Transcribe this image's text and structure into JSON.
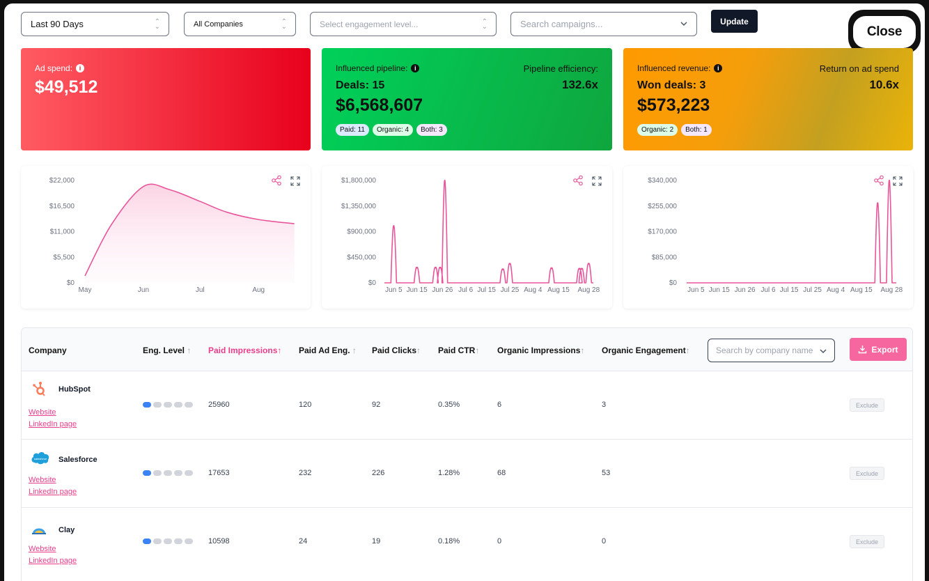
{
  "filters": {
    "date_range": "Last 90 Days",
    "companies": "All Companies",
    "engagement_placeholder": "Select engagement level...",
    "campaign_placeholder": "Search campaigns...",
    "update_label": "Update",
    "close_label": "Close"
  },
  "kpis": {
    "ad_spend": {
      "label": "Ad spend:",
      "value": "$49,512"
    },
    "pipeline": {
      "label": "Influenced pipeline:",
      "deals": "Deals: 15",
      "value": "$6,568,607",
      "right_label": "Pipeline efficiency:",
      "right_value": "132.6x",
      "pills": [
        "Paid: 11",
        "Organic: 4",
        "Both: 3"
      ]
    },
    "revenue": {
      "label": "Influenced revenue:",
      "deals": "Won deals: 3",
      "value": "$573,223",
      "right_label": "Return on ad spend",
      "right_value": "10.6x",
      "pills": [
        "Organic: 2",
        "Both: 1"
      ]
    }
  },
  "colors": {
    "accent": "#e83e8c",
    "line": "#e8559a",
    "ad_spend_card": "#ff3b3b",
    "pipeline_card": "#00c853",
    "revenue_card": "#ff9a00",
    "eng_on": "#3b82f6"
  },
  "icons": {
    "share": "share-icon",
    "expand": "expand-icon",
    "info": "info-icon",
    "download": "download-icon",
    "chevron": "chevron-down-icon"
  },
  "chart_data": [
    {
      "type": "area",
      "x": [
        "May",
        "May 15",
        "Jun",
        "Jun 15",
        "Jul",
        "Jul 15",
        "Aug",
        "Aug 20"
      ],
      "values": [
        1500,
        12500,
        20700,
        20000,
        17500,
        15200,
        13600,
        12700
      ],
      "xticks": [
        "May",
        "Jun",
        "Jul",
        "Aug"
      ],
      "yticks": [
        "$0",
        "$5,500",
        "$11,000",
        "$16,500",
        "$22,000"
      ],
      "ylim": [
        0,
        22000
      ],
      "grid": false
    },
    {
      "type": "line",
      "x": [
        "Jun 5",
        "Jun 15",
        "Jun 26",
        "Jul 6",
        "Jul 15",
        "Jul 25",
        "Aug 4",
        "Aug 15",
        "Aug 28"
      ],
      "peaks": [
        {
          "x": "Jun 5",
          "value": 1000000
        },
        {
          "x": "Jun 15",
          "value": 260000
        },
        {
          "x": "Jun 23",
          "value": 260000
        },
        {
          "x": "Jun 25",
          "value": 260000
        },
        {
          "x": "Jun 27",
          "value": 1800000
        },
        {
          "x": "Jul 22",
          "value": 230000
        },
        {
          "x": "Jul 25",
          "value": 330000
        },
        {
          "x": "Aug 12",
          "value": 250000
        },
        {
          "x": "Aug 24",
          "value": 240000
        },
        {
          "x": "Aug 25",
          "value": 240000
        },
        {
          "x": "Aug 28",
          "value": 330000
        }
      ],
      "xticks": [
        "Jun 5",
        "Jun 15",
        "Jun 26",
        "Jul 6",
        "Jul 15",
        "Jul 25",
        "Aug 4",
        "Aug 15",
        "Aug 28"
      ],
      "yticks": [
        "$0",
        "$450,000",
        "$900,000",
        "$1,350,000",
        "$1,800,000"
      ],
      "ylim": [
        0,
        1800000
      ],
      "grid": false
    },
    {
      "type": "line",
      "x": [
        "Jun 5",
        "Jun 15",
        "Jun 26",
        "Jul 6",
        "Jul 15",
        "Jul 25",
        "Aug 4",
        "Aug 15",
        "Aug 28"
      ],
      "peaks": [
        {
          "x": "Aug 22",
          "value": 265000
        },
        {
          "x": "Aug 27",
          "value": 340000
        }
      ],
      "xticks": [
        "Jun 5",
        "Jun 15",
        "Jun 26",
        "Jul 6",
        "Jul 15",
        "Jul 25",
        "Aug 4",
        "Aug 15",
        "Aug 28"
      ],
      "yticks": [
        "$0",
        "$85,000",
        "$170,000",
        "$255,000",
        "$340,000"
      ],
      "ylim": [
        0,
        340000
      ],
      "grid": false
    }
  ],
  "table": {
    "headers": [
      "Company",
      "Eng. Level",
      "Paid Impressions",
      "Paid Ad Eng.",
      "Paid Clicks",
      "Paid CTR",
      "Organic Impressions",
      "Organic Engagement"
    ],
    "arrow": "↑",
    "company_search_placeholder": "Search by company name",
    "export_label": "Export",
    "website_label": "Website",
    "linkedin_label": "LinkedIn page",
    "exclude_label": "Exclude",
    "rows": [
      {
        "name": "HubSpot",
        "eng_level": 1,
        "paid_impressions": "25960",
        "paid_ad_eng": "120",
        "paid_clicks": "92",
        "paid_ctr": "0.35%",
        "organic_impressions": "6",
        "organic_engagement": "3"
      },
      {
        "name": "Salesforce",
        "eng_level": 1,
        "paid_impressions": "17653",
        "paid_ad_eng": "232",
        "paid_clicks": "226",
        "paid_ctr": "1.28%",
        "organic_impressions": "68",
        "organic_engagement": "53"
      },
      {
        "name": "Clay",
        "eng_level": 1,
        "paid_impressions": "10598",
        "paid_ad_eng": "24",
        "paid_clicks": "19",
        "paid_ctr": "0.18%",
        "organic_impressions": "0",
        "organic_engagement": "0"
      }
    ]
  }
}
